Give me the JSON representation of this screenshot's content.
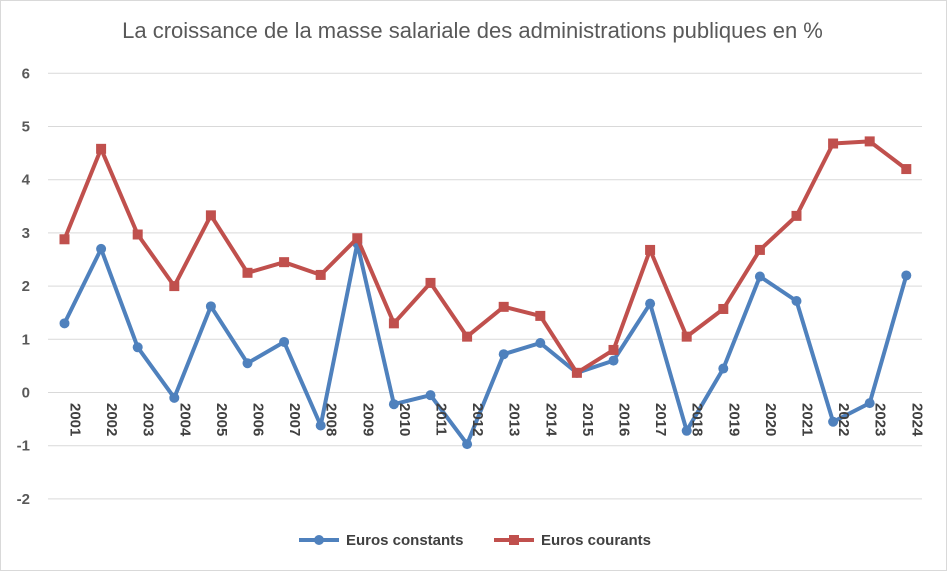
{
  "chart_data": {
    "type": "line",
    "title": "La croissance de la masse salariale des administrations publiques en %",
    "categories": [
      "2001",
      "2002",
      "2003",
      "2004",
      "2005",
      "2006",
      "2007",
      "2008",
      "2009",
      "2010",
      "2011",
      "2012",
      "2013",
      "2014",
      "2015",
      "2016",
      "2017",
      "2018",
      "2019",
      "2020",
      "2021",
      "2022",
      "2023",
      "2024"
    ],
    "y_ticks": [
      "6",
      "5",
      "4",
      "3",
      "2",
      "1",
      "0",
      "-1",
      "-2"
    ],
    "ylim": [
      -2,
      6
    ],
    "grid": true,
    "legend_position": "bottom",
    "series": [
      {
        "name": "Euros constants",
        "color": "#4f81bd",
        "marker": "circle",
        "values": [
          1.3,
          2.7,
          0.85,
          -0.1,
          1.62,
          0.55,
          0.95,
          -0.62,
          2.8,
          -0.22,
          -0.05,
          -0.97,
          0.72,
          0.93,
          0.37,
          0.6,
          1.67,
          -0.72,
          0.45,
          2.18,
          1.72,
          -0.55,
          -0.2,
          2.2
        ]
      },
      {
        "name": "Euros courants",
        "color": "#c0504d",
        "marker": "square",
        "values": [
          2.88,
          4.58,
          2.97,
          2.0,
          3.33,
          2.25,
          2.45,
          2.21,
          2.9,
          1.3,
          2.06,
          1.05,
          1.61,
          1.44,
          0.37,
          0.8,
          2.68,
          1.05,
          1.57,
          2.68,
          3.32,
          4.68,
          4.72,
          4.2
        ]
      }
    ]
  }
}
